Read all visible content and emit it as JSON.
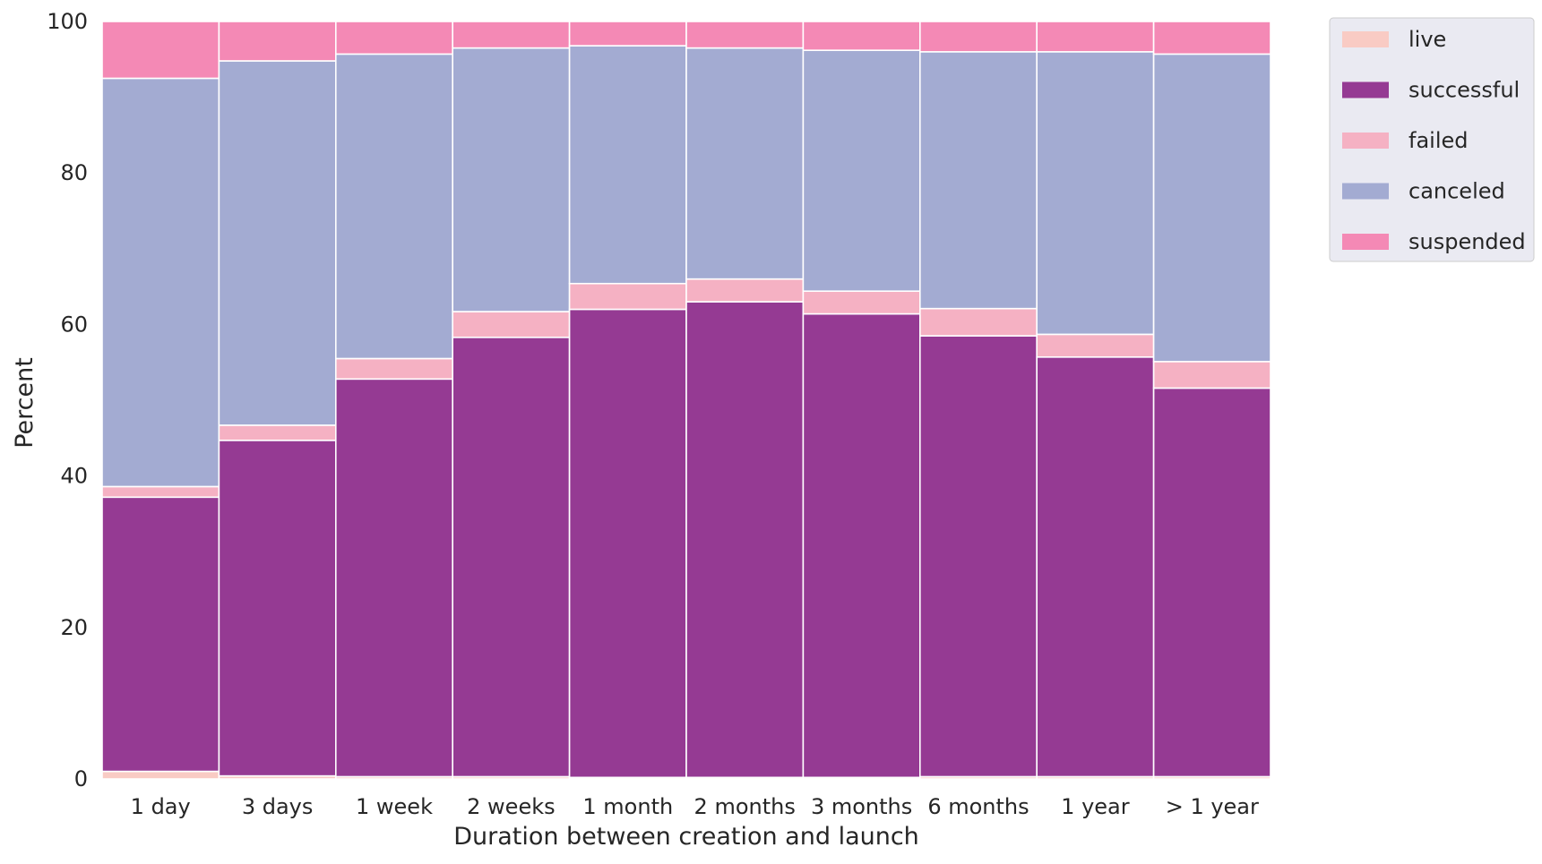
{
  "chart_data": {
    "type": "bar",
    "stacked": true,
    "normalized": true,
    "xlabel": "Duration between creation and launch",
    "ylabel": "Percent",
    "ylim": [
      0,
      100
    ],
    "yticks": [
      0,
      20,
      40,
      60,
      80,
      100
    ],
    "grid": false,
    "categories": [
      "1 day",
      "3 days",
      "1 week",
      "2 weeks",
      "1 month",
      "2 months",
      "3 months",
      "6 months",
      "1 year",
      "> 1 year"
    ],
    "series": [
      {
        "name": "live",
        "color": "#f9cbc4",
        "values": [
          1.0,
          0.4,
          0.3,
          0.3,
          0.2,
          0.2,
          0.2,
          0.3,
          0.3,
          0.3
        ]
      },
      {
        "name": "successful",
        "color": "#953a93",
        "values": [
          36.2,
          44.3,
          52.5,
          58.0,
          61.8,
          62.8,
          61.2,
          58.2,
          55.4,
          51.3
        ]
      },
      {
        "name": "failed",
        "color": "#f5b1c3",
        "values": [
          1.4,
          2.0,
          2.7,
          3.4,
          3.4,
          3.0,
          3.0,
          3.6,
          3.0,
          3.5
        ]
      },
      {
        "name": "canceled",
        "color": "#a3abd2",
        "values": [
          53.9,
          48.1,
          40.2,
          34.8,
          31.4,
          30.5,
          31.8,
          33.9,
          37.3,
          40.6
        ]
      },
      {
        "name": "suspended",
        "color": "#f489b5",
        "values": [
          7.5,
          5.2,
          4.3,
          3.5,
          3.2,
          3.5,
          3.8,
          4.0,
          4.0,
          4.3
        ]
      }
    ],
    "legend": {
      "position": "outside-top-right",
      "order": [
        "live",
        "successful",
        "failed",
        "canceled",
        "suspended"
      ]
    }
  }
}
